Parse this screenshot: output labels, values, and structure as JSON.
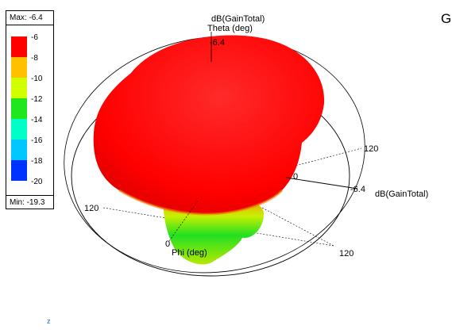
{
  "legend": {
    "max_label": "Max: -6.4",
    "min_label": "Min: -19.3",
    "entries": [
      {
        "label": "-6",
        "color": "#ff0000"
      },
      {
        "label": "-8",
        "color": "#ffc000"
      },
      {
        "label": "-10",
        "color": "#d2ff00"
      },
      {
        "label": "-12",
        "color": "#1fe61f"
      },
      {
        "label": "-14",
        "color": "#00ffc8"
      },
      {
        "label": "-16",
        "color": "#00c8ff"
      },
      {
        "label": "-18",
        "color": "#0032ff"
      },
      {
        "label": "-20",
        "color": ""
      }
    ]
  },
  "plot": {
    "top_quantity": "dB(GainTotal)",
    "theta_label": "Theta (deg)",
    "top_value": "-6.4",
    "right_value": "-6.4",
    "right_quantity": "dB(GainTotal)",
    "mid_value": "0",
    "phi_label": "Phi (deg)",
    "tick_120_right": "120",
    "tick_120_left": "120",
    "tick_120_bottom": "120",
    "tick_0": "0"
  },
  "window_title_fragment": "G",
  "axis_triad": {
    "z_label": "z"
  },
  "colors": {
    "pattern_main": "#ff0000",
    "pattern_low": "#1fe61f"
  }
}
